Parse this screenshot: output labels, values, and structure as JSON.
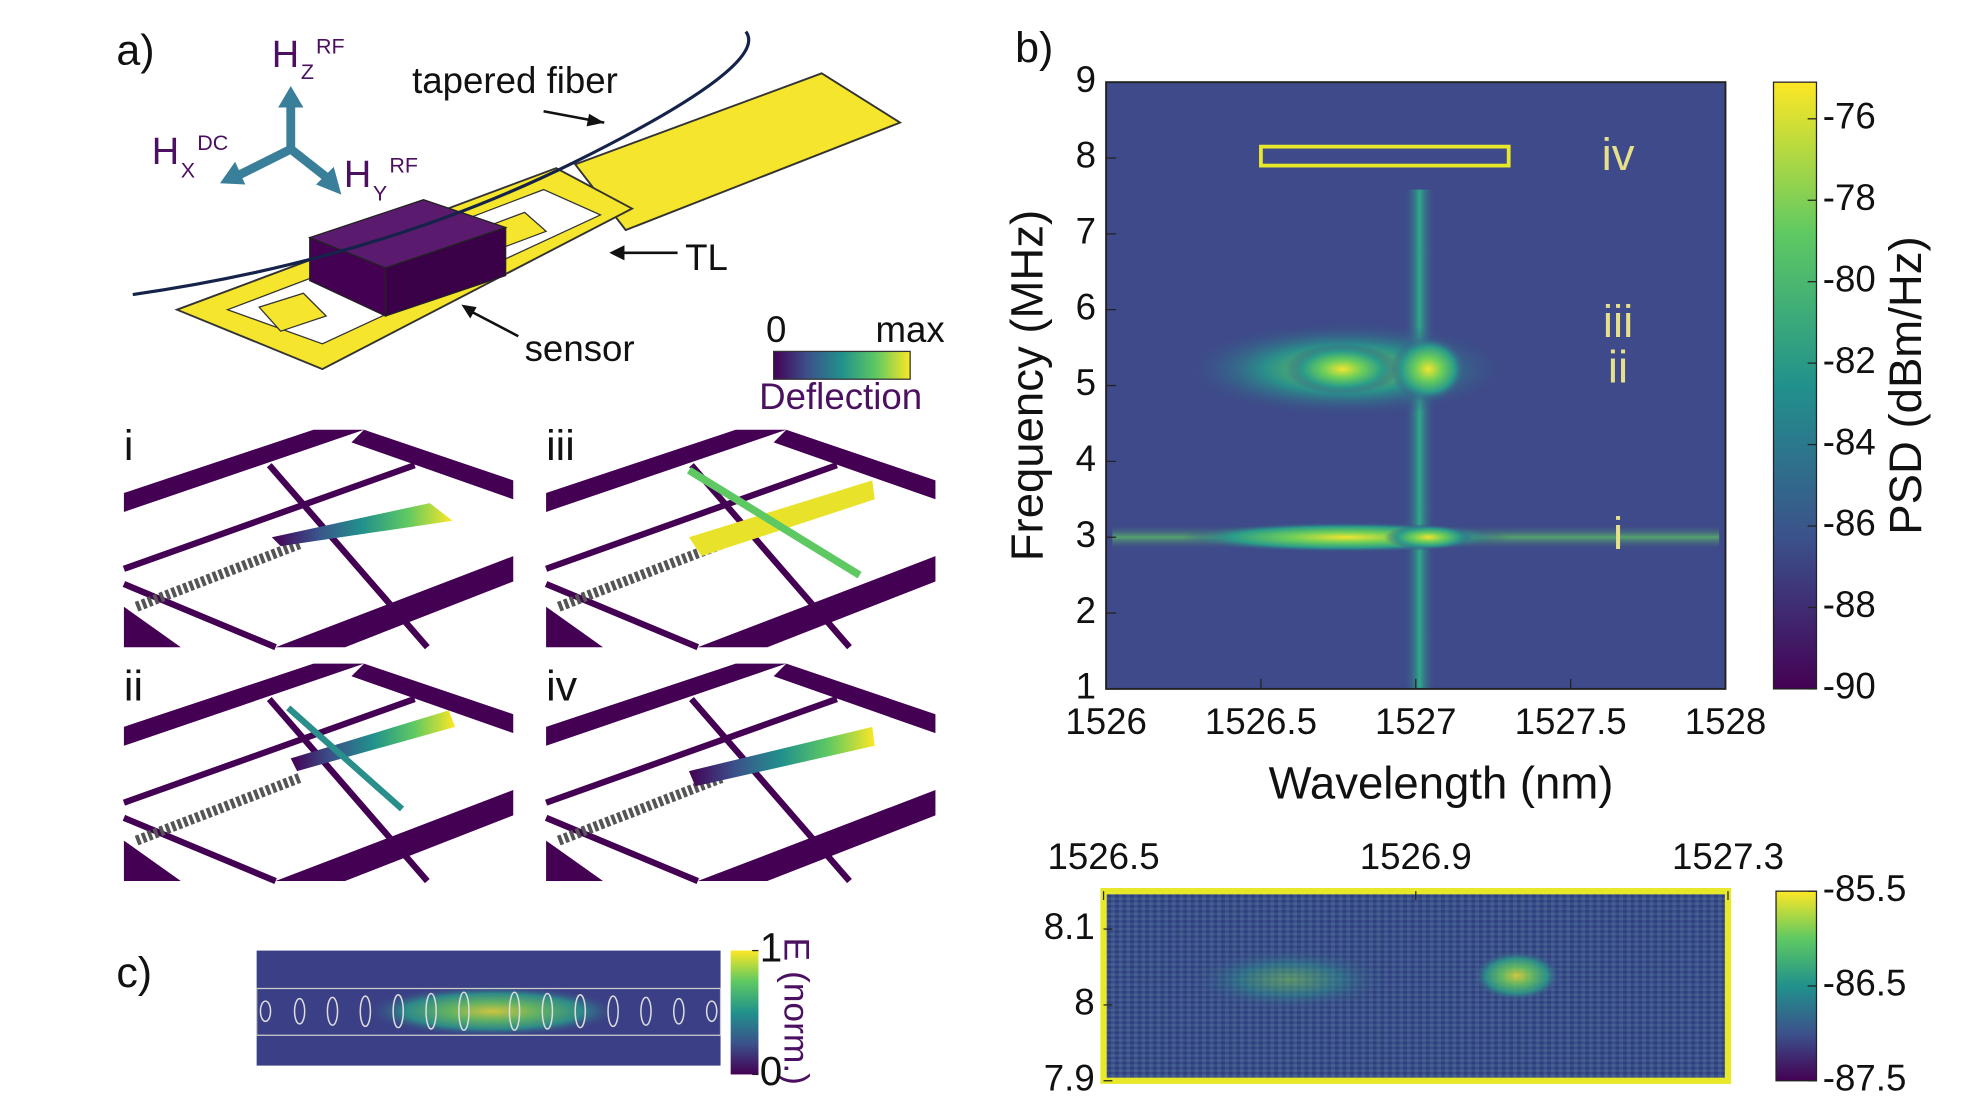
{
  "panel_a": {
    "label": "a)",
    "field_axes": [
      {
        "base": "H",
        "sub": "Z",
        "sup": "RF"
      },
      {
        "base": "H",
        "sub": "X",
        "sup": "DC"
      },
      {
        "base": "H",
        "sub": "Y",
        "sup": "RF"
      }
    ],
    "annotations": [
      "tapered fiber",
      "TL",
      "sensor"
    ],
    "colorbar": {
      "min_label": "0",
      "max_label": "max",
      "label": "Deflection"
    },
    "modes": [
      "i",
      "iii",
      "ii",
      "iv"
    ]
  },
  "panel_b": {
    "label": "b)",
    "xlabel": "Wavelength (nm)",
    "ylabel": "Frequency (MHz)",
    "xlim": [
      1526,
      1528
    ],
    "xticks": [
      1526,
      1526.5,
      1527,
      1527.5,
      1528
    ],
    "ylim": [
      1,
      9
    ],
    "yticks": [
      1,
      2,
      3,
      4,
      5,
      6,
      7,
      8,
      9
    ],
    "colorbar": {
      "label": "PSD (dBm/Hz)",
      "lim": [
        -90,
        -75.1
      ],
      "ticks": [
        -76,
        -78,
        -80,
        -82,
        -84,
        -86,
        -88,
        -90
      ]
    },
    "mode_labels": [
      {
        "text": "iv",
        "y": 8
      },
      {
        "text": "iii",
        "y": 5.8
      },
      {
        "text": "ii",
        "y": 5.2
      },
      {
        "text": "i",
        "y": 3
      }
    ],
    "inset": {
      "xlim": [
        1526.5,
        1527.3
      ],
      "xticks": [
        1526.5,
        1526.9,
        1527.3
      ],
      "ylim": [
        7.9,
        8.15
      ],
      "yticks": [
        8.1,
        8,
        7.9
      ],
      "colorbar": {
        "lim": [
          -87.5,
          -85.5
        ],
        "ticks": [
          -85.5,
          -86.5,
          -87.5
        ]
      }
    }
  },
  "panel_c": {
    "label": "c)",
    "colorbar": {
      "label": "E (norm.)",
      "lim": [
        0,
        1
      ],
      "ticks": [
        1,
        0
      ]
    }
  }
}
